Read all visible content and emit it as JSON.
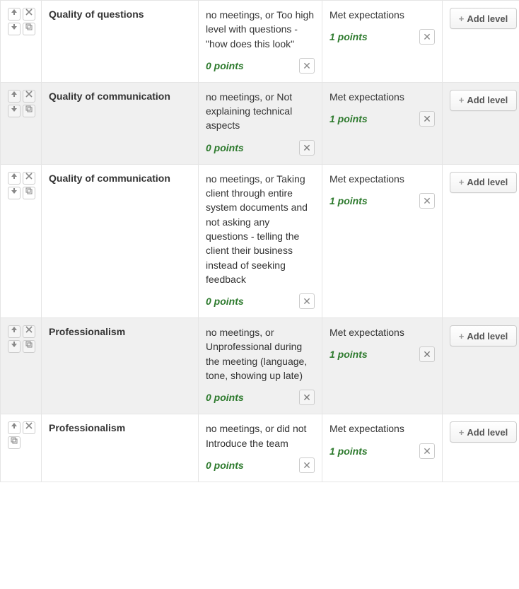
{
  "add_level_label": "Add level",
  "rows": [
    {
      "alt": false,
      "controls": [
        "up",
        "delete",
        "down",
        "copy"
      ],
      "title": "Quality of questions",
      "levels": [
        {
          "desc": "no meetings, or Too high level with questions - \"how does this look\"",
          "points": "0 points"
        },
        {
          "desc": "Met expectations",
          "points": "1 points"
        }
      ]
    },
    {
      "alt": true,
      "controls": [
        "up",
        "delete",
        "down",
        "copy"
      ],
      "title": "Quality of communication",
      "levels": [
        {
          "desc": "no meetings, or Not explaining technical aspects",
          "points": "0 points"
        },
        {
          "desc": "Met expectations",
          "points": "1 points"
        }
      ]
    },
    {
      "alt": false,
      "controls": [
        "up",
        "delete",
        "down",
        "copy"
      ],
      "title": "Quality of communication",
      "levels": [
        {
          "desc": "no meetings, or Taking client through entire system documents and not asking any questions - telling the client their business instead of seeking feedback",
          "points": "0 points"
        },
        {
          "desc": "Met expectations",
          "points": "1 points"
        }
      ]
    },
    {
      "alt": true,
      "controls": [
        "up",
        "delete",
        "down",
        "copy"
      ],
      "title": "Professionalism",
      "levels": [
        {
          "desc": "no meetings, or Unprofessional during the meeting (language, tone, showing up late)",
          "points": "0 points"
        },
        {
          "desc": "Met expectations",
          "points": "1 points"
        }
      ]
    },
    {
      "alt": false,
      "controls": [
        "up",
        "delete",
        "copy"
      ],
      "title": "Professionalism",
      "levels": [
        {
          "desc": "no meetings, or did not Introduce the team",
          "points": "0 points"
        },
        {
          "desc": "Met expectations",
          "points": "1 points"
        }
      ]
    }
  ],
  "icons": {
    "up": "arrow-up-icon",
    "down": "arrow-down-icon",
    "delete": "close-icon",
    "copy": "copy-icon"
  },
  "colors": {
    "border": "#e5e5e5",
    "alt_bg": "#f0f0f0",
    "points": "#2d7a2d",
    "icon": "#888888"
  }
}
